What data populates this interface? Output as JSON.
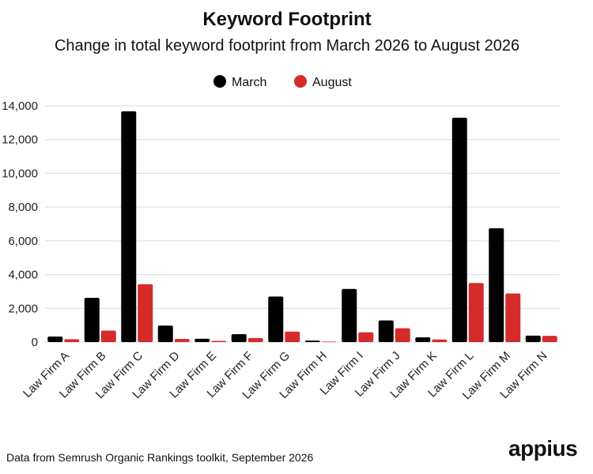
{
  "chart_data": {
    "type": "bar",
    "title": "Keyword Footprint",
    "subtitle": "Change in total keyword footprint from March 2026 to August 2026",
    "categories": [
      "Law Firm A",
      "Law Firm B",
      "Law Firm C",
      "Law Firm D",
      "Law Firm E",
      "Law Firm F",
      "Law Firm G",
      "Law Firm H",
      "Law Firm I",
      "Law Firm J",
      "Law Firm K",
      "Law Firm L",
      "Law Firm M",
      "Law Firm N"
    ],
    "series": [
      {
        "name": "March",
        "color": "#000000",
        "values": [
          330,
          2620,
          13680,
          980,
          200,
          470,
          2700,
          90,
          3150,
          1280,
          280,
          13300,
          6750,
          380
        ]
      },
      {
        "name": "August",
        "color": "#d52b2b",
        "values": [
          170,
          680,
          3430,
          190,
          70,
          240,
          620,
          30,
          580,
          820,
          150,
          3500,
          2880,
          370
        ]
      }
    ],
    "yticks": [
      "0",
      "2,000",
      "4,000",
      "6,000",
      "8,000",
      "10,000",
      "12,000",
      "14,000"
    ],
    "ylim": [
      0,
      14000
    ],
    "grid": true,
    "legend_position": "top-center",
    "xlabel": "",
    "ylabel": ""
  },
  "footer": {
    "source": "Data from Semrush Organic Rankings toolkit, September 2026",
    "logo": "appius"
  }
}
